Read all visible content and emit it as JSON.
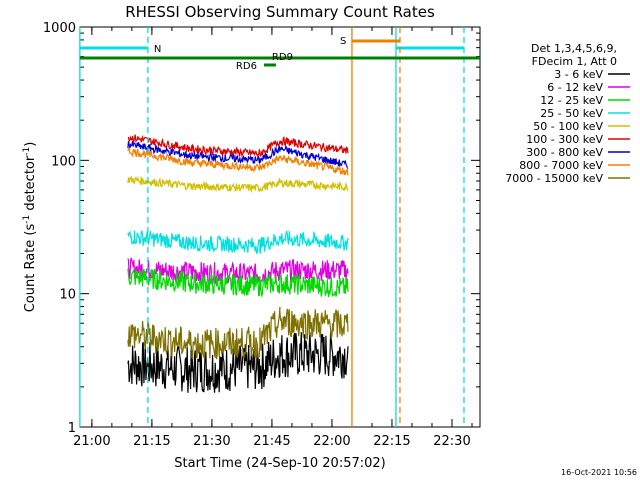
{
  "chart_data": {
    "type": "line",
    "title": "RHESSI Observing Summary Count Rates",
    "xlabel": "Start Time (24-Sep-10 20:57:02)",
    "ylabel_main": "Count Rate (s",
    "ylabel_sup1": "-1",
    "ylabel_mid": " detector",
    "ylabel_sup2": "-1",
    "ylabel_end": ")",
    "y_scale": "log",
    "ylim": [
      1,
      1000
    ],
    "x_start": "20:57:02",
    "x_end": "22:37",
    "x_ticks": [
      "21:00",
      "21:15",
      "21:30",
      "21:45",
      "22:00",
      "22:15",
      "22:30"
    ],
    "y_ticks": [
      "1",
      "10",
      "100",
      "1000"
    ],
    "timestamp": "16-Oct-2021 10:56",
    "legend_header": [
      "Det 1,3,4,5,6,9,",
      "FDecim 1, Att 0"
    ],
    "legend_placement": "right",
    "data_gaps": [
      [
        "20:57",
        "21:09"
      ],
      [
        "22:05",
        "22:37"
      ]
    ],
    "series": [
      {
        "name": "3 - 6 keV",
        "color": "#000000",
        "values": [
          [
            "21:09",
            3.0
          ],
          [
            "21:25",
            2.7
          ],
          [
            "21:42",
            2.8
          ],
          [
            "21:47",
            3.5
          ],
          [
            "22:04",
            3.5
          ]
        ]
      },
      {
        "name": "6 - 12 keV",
        "color": "#e000e0",
        "values": [
          [
            "21:09",
            15.5
          ],
          [
            "21:25",
            14.5
          ],
          [
            "21:42",
            14.0
          ],
          [
            "21:47",
            15.0
          ],
          [
            "22:04",
            15.0
          ]
        ]
      },
      {
        "name": "12 - 25 keV",
        "color": "#00d800",
        "values": [
          [
            "21:09",
            13.5
          ],
          [
            "21:25",
            12.0
          ],
          [
            "21:42",
            11.5
          ],
          [
            "21:47",
            12.0
          ],
          [
            "22:04",
            11.0
          ]
        ]
      },
      {
        "name": "25 - 50 keV",
        "color": "#00e0e0",
        "values": [
          [
            "21:09",
            27.0
          ],
          [
            "21:25",
            24.0
          ],
          [
            "21:42",
            23.0
          ],
          [
            "21:47",
            26.0
          ],
          [
            "22:04",
            24.0
          ]
        ]
      },
      {
        "name": "50 - 100 keV",
        "color": "#d0c000",
        "values": [
          [
            "21:09",
            72.0
          ],
          [
            "21:25",
            64.0
          ],
          [
            "21:42",
            62.0
          ],
          [
            "21:47",
            68.0
          ],
          [
            "22:04",
            63.0
          ]
        ]
      },
      {
        "name": "100 - 300 keV",
        "color": "#e00000",
        "values": [
          [
            "21:09",
            150.0
          ],
          [
            "21:25",
            122.0
          ],
          [
            "21:42",
            112.0
          ],
          [
            "21:47",
            140.0
          ],
          [
            "22:04",
            118.0
          ]
        ]
      },
      {
        "name": "300 - 800 keV",
        "color": "#0000d0",
        "values": [
          [
            "21:09",
            132.0
          ],
          [
            "21:25",
            108.0
          ],
          [
            "21:42",
            100.0
          ],
          [
            "21:47",
            122.0
          ],
          [
            "22:04",
            92.0
          ]
        ]
      },
      {
        "name": "800 - 7000 keV",
        "color": "#f08000",
        "values": [
          [
            "21:09",
            118.0
          ],
          [
            "21:25",
            96.0
          ],
          [
            "21:42",
            88.0
          ],
          [
            "21:47",
            104.0
          ],
          [
            "22:04",
            82.0
          ]
        ]
      },
      {
        "name": "7000 - 15000 keV",
        "color": "#807000",
        "values": [
          [
            "21:09",
            5.0
          ],
          [
            "21:25",
            4.2
          ],
          [
            "21:42",
            4.3
          ],
          [
            "21:47",
            6.2
          ],
          [
            "22:04",
            5.8
          ]
        ]
      }
    ],
    "markers": {
      "N_label": "N",
      "S_label": "S",
      "RD9_label": "RD9",
      "RD6_label": "RD6",
      "night_intervals": [
        [
          "20:57",
          "21:14"
        ],
        [
          "22:16",
          "22:33"
        ]
      ],
      "saa_interval": [
        "22:05",
        "22:17"
      ],
      "rd9_interval": [
        "20:57",
        "22:37"
      ],
      "rd6_interval": [
        "21:43",
        "21:46"
      ]
    }
  }
}
